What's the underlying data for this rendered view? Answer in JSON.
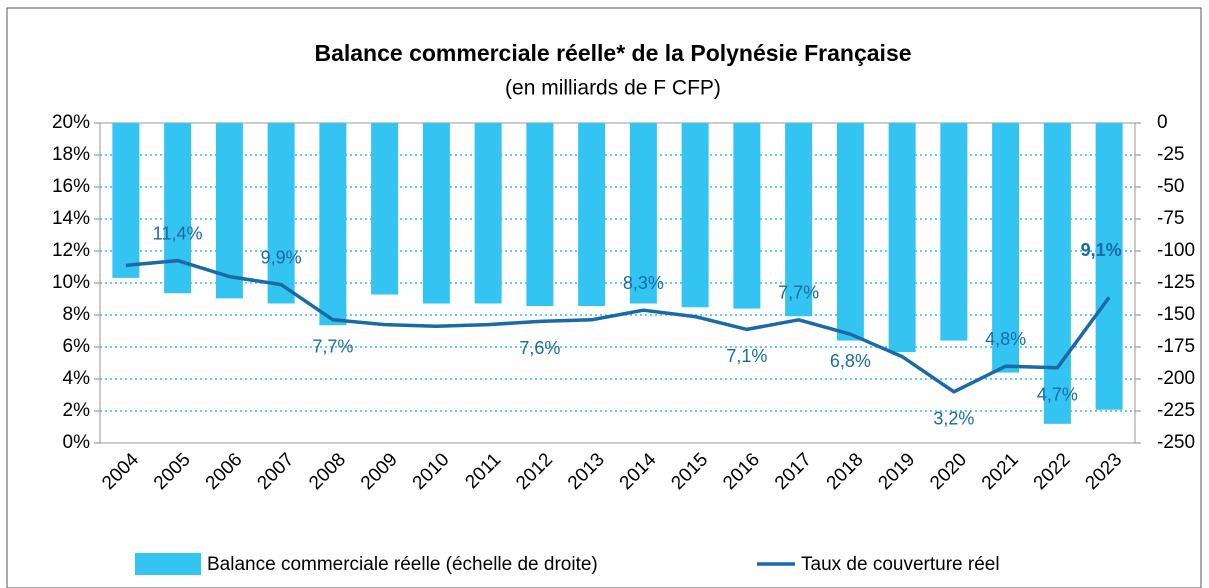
{
  "chart_data": {
    "type": "bar_line",
    "title": "Balance commerciale réelle* de la Polynésie Française",
    "subtitle": "(en milliards de F CFP)",
    "categories": [
      "2004",
      "2005",
      "2006",
      "2007",
      "2008",
      "2009",
      "2010",
      "2011",
      "2012",
      "2013",
      "2014",
      "2015",
      "2016",
      "2017",
      "2018",
      "2019",
      "2020",
      "2021",
      "2022",
      "2023"
    ],
    "series": [
      {
        "name": "Balance commerciale réelle (échelle de droite)",
        "type": "bar",
        "axis": "y2",
        "color": "#33c4f2",
        "values": [
          -121,
          -133,
          -137,
          -141,
          -158,
          -134,
          -141,
          -141,
          -143,
          -143,
          -141,
          -144,
          -145,
          -151,
          -170,
          -179,
          -170,
          -195,
          -235,
          -224
        ]
      },
      {
        "name": "Taux de couverture réel",
        "type": "line",
        "axis": "y",
        "color": "#1a6aa6",
        "values": [
          11.1,
          11.4,
          10.4,
          9.9,
          7.7,
          7.4,
          7.3,
          7.4,
          7.6,
          7.7,
          8.3,
          7.9,
          7.1,
          7.7,
          6.8,
          5.4,
          3.2,
          4.8,
          4.7,
          9.1
        ],
        "value_labels": [
          null,
          "11,4%",
          null,
          "9,9%",
          "7,7%",
          null,
          null,
          null,
          "7,6%",
          null,
          "8,3%",
          null,
          "7,1%",
          "7,7%",
          "6,8%",
          null,
          "3,2%",
          "4,8%",
          "4,7%",
          "9,1%"
        ]
      }
    ],
    "ylim": [
      0,
      20
    ],
    "yticks": [
      {
        "value": 0,
        "label": "0%"
      },
      {
        "value": 2,
        "label": "2%"
      },
      {
        "value": 4,
        "label": "4%"
      },
      {
        "value": 6,
        "label": "6%"
      },
      {
        "value": 8,
        "label": "8%"
      },
      {
        "value": 10,
        "label": "10%"
      },
      {
        "value": 12,
        "label": "12%"
      },
      {
        "value": 14,
        "label": "14%"
      },
      {
        "value": 16,
        "label": "16%"
      },
      {
        "value": 18,
        "label": "18%"
      },
      {
        "value": 20,
        "label": "20%"
      }
    ],
    "y2lim": [
      -250,
      0
    ],
    "y2ticks": [
      -250,
      -225,
      -200,
      -175,
      -150,
      -125,
      -100,
      -75,
      -50,
      -25,
      0
    ],
    "grid": true
  }
}
